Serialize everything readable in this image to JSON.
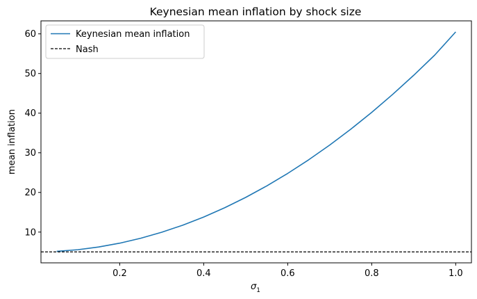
{
  "chart_data": {
    "type": "line",
    "title": "Keynesian mean inflation by shock size",
    "xlabel": "σ",
    "xlabel_sub": "1",
    "ylabel": "mean inflation",
    "xlim": [
      0.0125,
      1.0375
    ],
    "ylim": [
      2.24,
      63.28
    ],
    "x_ticks": [
      0.2,
      0.4,
      0.6,
      0.8,
      1.0
    ],
    "x_tick_labels": [
      "0.2",
      "0.4",
      "0.6",
      "0.8",
      "1.0"
    ],
    "y_ticks": [
      10,
      20,
      30,
      40,
      50,
      60
    ],
    "y_tick_labels": [
      "10",
      "20",
      "30",
      "40",
      "50",
      "60"
    ],
    "grid": false,
    "legend_position": "upper-left",
    "series": [
      {
        "name": "Keynesian mean inflation",
        "color": "#1f77b4",
        "style": "solid",
        "x": [
          0.05,
          0.1,
          0.15,
          0.2,
          0.25,
          0.3,
          0.35,
          0.4,
          0.45,
          0.5,
          0.55,
          0.6,
          0.65,
          0.7,
          0.75,
          0.8,
          0.85,
          0.9,
          0.95,
          1.0
        ],
        "y": [
          5.14,
          5.55,
          6.24,
          7.2,
          8.44,
          9.95,
          11.74,
          13.8,
          16.14,
          18.75,
          21.64,
          24.8,
          28.24,
          31.95,
          35.94,
          40.2,
          44.74,
          49.55,
          54.64,
          60.5
        ]
      },
      {
        "name": "Nash",
        "color": "#000000",
        "style": "dashed",
        "hline": 5.0
      }
    ]
  }
}
